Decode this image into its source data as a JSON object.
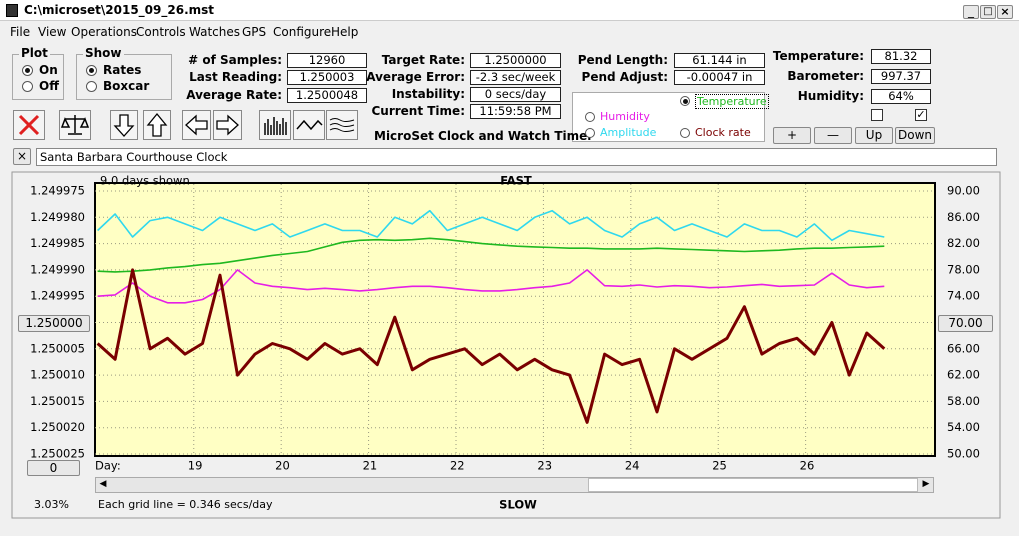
{
  "window": {
    "title": "C:\\microset\\2015_09_26.mst"
  },
  "menu": [
    "File",
    "View",
    "Operations",
    "Controls",
    "Watches",
    "GPS",
    "Configure",
    "Help"
  ],
  "plot_group": {
    "title": "Plot",
    "options": [
      "On",
      "Off"
    ]
  },
  "show_group": {
    "title": "Show",
    "options": [
      "Rates",
      "Boxcar"
    ]
  },
  "fields": [
    [
      {
        "label": "# of Samples:",
        "value": "12960"
      },
      {
        "label": "Last Reading:",
        "value": "1.250003"
      },
      {
        "label": "Average Rate:",
        "value": "1.2500048"
      }
    ],
    [
      {
        "label": "Target Rate:",
        "value": "1.2500000"
      },
      {
        "label": "Average Error:",
        "value": "-2.3 sec/week"
      },
      {
        "label": "Instability:",
        "value": "0 secs/day"
      },
      {
        "label": "Current Time:",
        "value": "11:59:58 PM"
      }
    ],
    [
      {
        "label": "Pend Length:",
        "value": "61.144 in"
      },
      {
        "label": "Pend Adjust:",
        "value": "-0.00047 in"
      }
    ],
    [
      {
        "label": "Temperature:",
        "value": "81.32"
      },
      {
        "label": "Barometer:",
        "value": "997.37"
      },
      {
        "label": "Humidity:",
        "value": "64%"
      }
    ]
  ],
  "app_title": "MicroSet Clock and Watch Timer",
  "buttons": [
    "+",
    "—",
    "Up",
    "Down"
  ],
  "watch_name": "Santa Barbara Courthouse Clock",
  "status": {
    "percent": "3.03%",
    "grid_note": "Each grid line = 0.346 secs/day"
  },
  "chart_data": {
    "type": "line",
    "days_shown": "9.0 days shown",
    "fast_label": "FAST",
    "slow_label": "SLOW",
    "x_label": "Day:",
    "rate_box": "1.250000",
    "y2_box": "70.00",
    "offset_box": "0",
    "x": [
      17.9,
      18.1,
      18.3,
      18.5,
      18.7,
      18.9,
      19.1,
      19.3,
      19.5,
      19.7,
      19.9,
      20.1,
      20.3,
      20.5,
      20.7,
      20.9,
      21.1,
      21.3,
      21.5,
      21.7,
      21.9,
      22.1,
      22.3,
      22.5,
      22.7,
      22.9,
      23.1,
      23.3,
      23.5,
      23.7,
      23.9,
      24.1,
      24.3,
      24.5,
      24.7,
      24.9,
      25.1,
      25.3,
      25.5,
      25.7,
      25.9,
      26.1,
      26.3,
      26.5,
      26.7,
      26.9
    ],
    "xlim": [
      17.87,
      27.48
    ],
    "xticks": [
      19,
      20,
      21,
      22,
      23,
      24,
      25,
      26
    ],
    "ylim": [
      1.249975,
      1.250025
    ],
    "y_inverted": true,
    "yticks": [
      1.249975,
      {
        "value": 1.24998,
        "label": "1.249980"
      },
      1.249985,
      {
        "value": 1.24999,
        "label": "1.249990"
      },
      1.249995,
      {
        "value": 1.25,
        "label": "1.250000"
      },
      1.250005,
      {
        "value": 1.25001,
        "label": "1.250010"
      },
      1.250015,
      {
        "value": 1.25002,
        "label": "1.250020"
      },
      1.250025
    ],
    "y2lim": [
      50,
      90
    ],
    "y2ticks": [
      {
        "value": 90,
        "label": "90.00"
      },
      {
        "value": 86,
        "label": "86.00"
      },
      {
        "value": 82,
        "label": "82.00"
      },
      {
        "value": 78,
        "label": "78.00"
      },
      {
        "value": 74,
        "label": "74.00"
      },
      {
        "value": 70,
        "label": "70.00"
      },
      {
        "value": 66,
        "label": "66.00"
      },
      {
        "value": 62,
        "label": "62.00"
      },
      {
        "value": 58,
        "label": "58.00"
      },
      {
        "value": 54,
        "label": "54.00"
      },
      {
        "value": 50,
        "label": "50.00"
      }
    ],
    "grid": true,
    "series": [
      {
        "name": "Temperature",
        "color": "#1fb81f",
        "axis": "y2",
        "values": [
          77.8,
          77.7,
          77.8,
          78,
          78.3,
          78.5,
          78.8,
          79,
          79.4,
          79.8,
          80.2,
          80.5,
          80.8,
          81.5,
          82.2,
          82.5,
          82.6,
          82.5,
          82.6,
          82.8,
          82.6,
          82.3,
          82,
          81.8,
          81.6,
          81.5,
          81.4,
          81.3,
          81.3,
          81.2,
          81.2,
          81.2,
          81.3,
          81.2,
          81.1,
          81,
          80.9,
          80.8,
          80.9,
          81,
          81.2,
          81.3,
          81.3,
          81.4,
          81.5,
          81.6
        ]
      },
      {
        "name": "Humidity",
        "color": "#e61ee6",
        "axis": "y2",
        "values": [
          74,
          74.2,
          76,
          74,
          73,
          73,
          73.5,
          75,
          78,
          76,
          75.5,
          75.3,
          75,
          75.2,
          75,
          74.8,
          75,
          75.3,
          75.5,
          75.5,
          75.3,
          75,
          74.8,
          74.8,
          75,
          75.3,
          75.5,
          76,
          78,
          75.6,
          75.5,
          75.7,
          75.4,
          75.6,
          75.5,
          75.3,
          75.4,
          75.6,
          75.8,
          75.5,
          75.6,
          75.7,
          77.5,
          75.7,
          75.3,
          75.5
        ]
      },
      {
        "name": "Amplitude",
        "color": "#2fd8ee",
        "axis": "y2",
        "values": [
          84,
          86.5,
          83,
          85.5,
          86,
          85,
          84,
          86,
          85,
          84,
          85,
          83,
          84,
          85,
          84,
          84,
          83,
          86,
          85,
          87,
          84,
          85,
          86,
          85,
          84,
          86,
          87,
          85,
          86,
          84,
          83,
          85,
          86,
          84,
          85,
          84,
          83,
          85,
          84,
          84,
          83,
          85,
          82.5,
          84,
          83.5,
          83
        ]
      },
      {
        "name": "Clock rate",
        "color": "#7a0000",
        "values": [
          1.250004,
          1.250007,
          1.24999,
          1.250005,
          1.250003,
          1.250006,
          1.250004,
          1.249991,
          1.25001,
          1.250006,
          1.250004,
          1.250005,
          1.250007,
          1.250004,
          1.250006,
          1.250005,
          1.250008,
          1.249999,
          1.250009,
          1.250007,
          1.250006,
          1.250005,
          1.250008,
          1.250006,
          1.250009,
          1.250007,
          1.250009,
          1.25001,
          1.250019,
          1.250006,
          1.250008,
          1.250007,
          1.250017,
          1.250005,
          1.250007,
          1.250005,
          1.250003,
          1.249997,
          1.250006,
          1.250004,
          1.250003,
          1.250006,
          1.25,
          1.25001,
          1.250002,
          1.250005
        ]
      }
    ]
  }
}
